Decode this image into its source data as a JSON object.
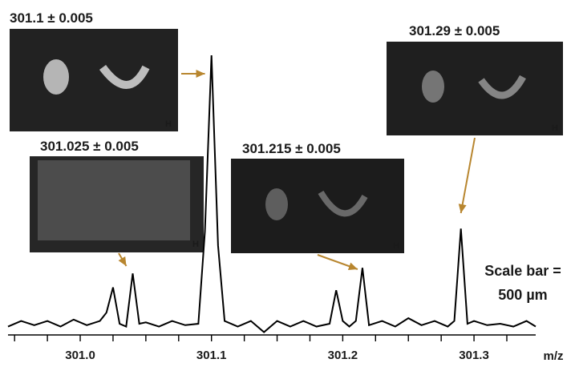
{
  "chart_data": {
    "type": "line",
    "xlabel": "m/z",
    "ylabel": "",
    "xlim": [
      300.945,
      301.347
    ],
    "ylim": [
      -0.02,
      1.0
    ],
    "x_ticks": [
      301.0,
      301.1,
      301.2,
      301.3
    ],
    "x_tick_labels": [
      "301.0",
      "301.1",
      "301.2",
      "301.3"
    ],
    "minor_tick_step": 0.025,
    "series": [
      {
        "x": [
          300.945,
          300.955,
          300.965,
          300.975,
          300.985,
          300.995,
          301.005,
          301.015,
          301.02,
          301.025,
          301.03,
          301.035,
          301.04,
          301.045,
          301.05,
          301.06,
          301.07,
          301.08,
          301.09,
          301.095,
          301.1,
          301.105,
          301.11,
          301.12,
          301.13,
          301.14,
          301.15,
          301.16,
          301.17,
          301.18,
          301.19,
          301.195,
          301.2,
          301.205,
          301.21,
          301.215,
          301.22,
          301.23,
          301.24,
          301.25,
          301.26,
          301.27,
          301.28,
          301.285,
          301.29,
          301.295,
          301.3,
          301.31,
          301.32,
          301.33,
          301.34,
          301.347
        ],
        "y": [
          0.01,
          0.03,
          0.015,
          0.03,
          0.01,
          0.035,
          0.015,
          0.03,
          0.06,
          0.15,
          0.02,
          0.01,
          0.2,
          0.02,
          0.025,
          0.01,
          0.03,
          0.015,
          0.02,
          0.35,
          0.98,
          0.3,
          0.03,
          0.01,
          0.03,
          -0.01,
          0.03,
          0.01,
          0.03,
          0.01,
          0.02,
          0.14,
          0.03,
          0.01,
          0.03,
          0.22,
          0.015,
          0.03,
          0.01,
          0.04,
          0.015,
          0.03,
          0.01,
          0.03,
          0.36,
          0.02,
          0.03,
          0.015,
          0.02,
          0.01,
          0.03,
          0.01
        ]
      }
    ]
  },
  "annotations": [
    {
      "label": "301.1 ± 0.005",
      "target_x": 301.1
    },
    {
      "label": "301.025 ± 0.005",
      "target_x": 301.04
    },
    {
      "label": "301.215 ± 0.005",
      "target_x": 301.215
    },
    {
      "label": "301.29 ± 0.005",
      "target_x": 301.29
    }
  ],
  "scale_bar_text_line1": "Scale bar =",
  "scale_bar_text_line2": "500 µm",
  "image_marker": "H",
  "colors": {
    "arrow": "#b8862f",
    "trace": "#000000",
    "image_bg": "#1a1a1a"
  }
}
